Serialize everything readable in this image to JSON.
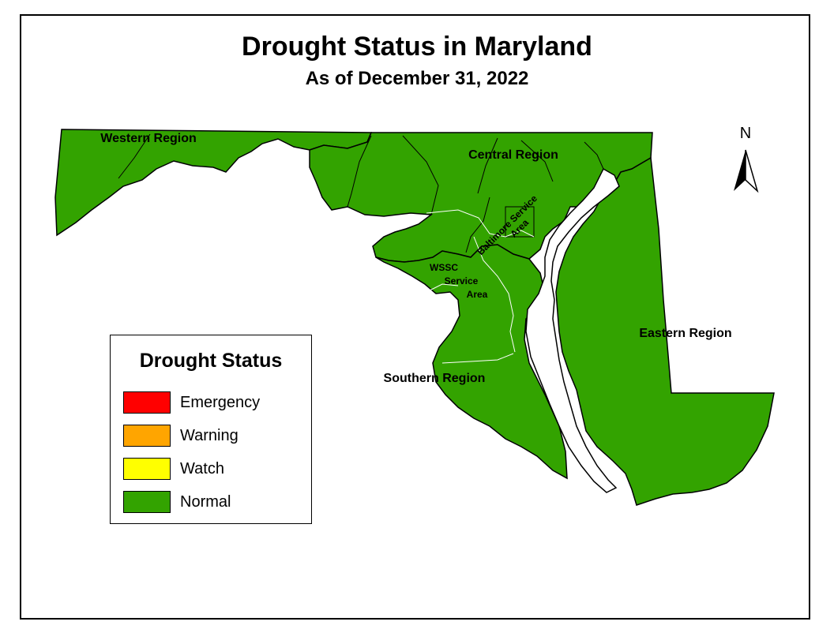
{
  "title": "Drought Status in Maryland",
  "subtitle": "As of December 31, 2022",
  "regions": {
    "western": "Western Region",
    "central": "Central Region",
    "eastern": "Eastern Region",
    "southern": "Southern Region",
    "baltimore_line1": "Baltimore Service",
    "baltimore_line2": "Area",
    "wssc_line1": "WSSC",
    "wssc_line2": "Service",
    "wssc_line3": "Area"
  },
  "region_status": {
    "western": "Normal",
    "central": "Normal",
    "eastern": "Normal",
    "southern": "Normal"
  },
  "legend": {
    "title": "Drought Status",
    "items": [
      {
        "label": "Emergency",
        "color": "#ff0000"
      },
      {
        "label": "Warning",
        "color": "#ffa500"
      },
      {
        "label": "Watch",
        "color": "#ffff00"
      },
      {
        "label": "Normal",
        "color": "#33a300"
      }
    ]
  },
  "north_arrow": {
    "letter": "N",
    "icon": "north-arrow-icon"
  },
  "colors": {
    "normal_fill": "#33a300",
    "border": "#000000",
    "background": "#ffffff"
  }
}
